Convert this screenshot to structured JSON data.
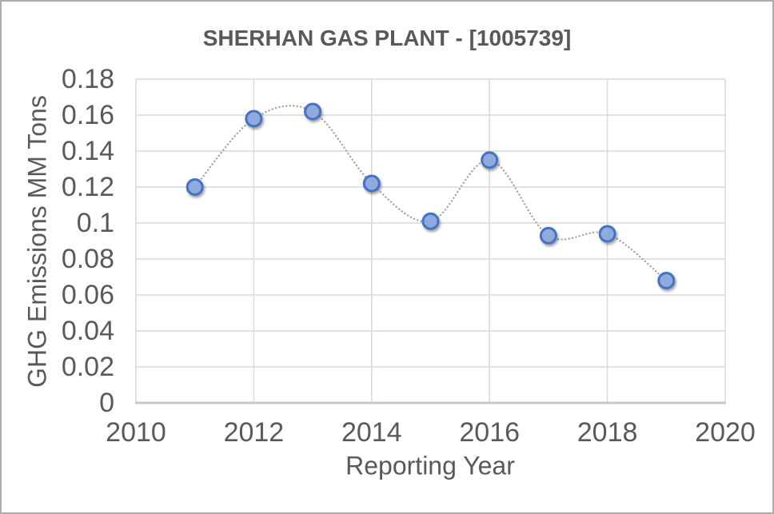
{
  "chart_data": {
    "type": "line",
    "title": "SHERHAN GAS PLANT - [1005739]",
    "xlabel": "Reporting Year",
    "ylabel": "GHG Emissions MM Tons",
    "x": [
      2011,
      2012,
      2013,
      2014,
      2015,
      2016,
      2017,
      2018,
      2019
    ],
    "values": [
      0.12,
      0.158,
      0.162,
      0.122,
      0.101,
      0.135,
      0.093,
      0.094,
      0.068
    ],
    "xlim": [
      2010,
      2020
    ],
    "ylim": [
      0,
      0.18
    ],
    "x_tick_labels": [
      "2010",
      "2012",
      "2014",
      "2016",
      "2018",
      "2020"
    ],
    "x_tick_values": [
      2010,
      2012,
      2014,
      2016,
      2018,
      2020
    ],
    "y_tick_labels": [
      "0",
      "0.02",
      "0.04",
      "0.06",
      "0.08",
      "0.1",
      "0.12",
      "0.14",
      "0.16",
      "0.18"
    ],
    "y_tick_values": [
      0,
      0.02,
      0.04,
      0.06,
      0.08,
      0.1,
      0.12,
      0.14,
      0.16,
      0.18
    ],
    "grid": true,
    "legend": "none",
    "line_style": "dotted-smooth",
    "marker": "circle"
  },
  "colors": {
    "background": "#FFFFFF",
    "frame_border": "#ACACAC",
    "text": "#595959",
    "gridline": "#D9D9D9",
    "axis_line": "#C8C8C8",
    "connector_line": "#A6A6A6",
    "marker_fill": "#8FAADC",
    "marker_stroke": "#4472C4"
  }
}
